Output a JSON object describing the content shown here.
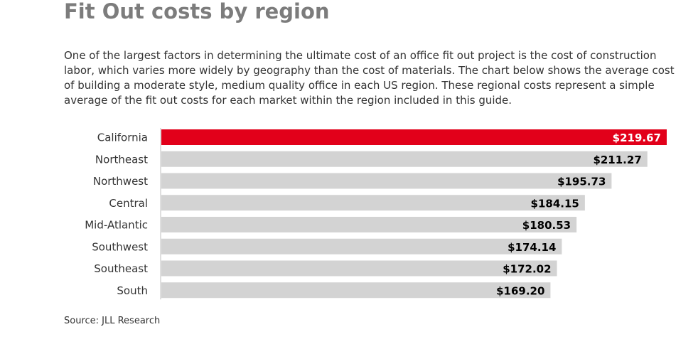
{
  "title": "Fit Out costs by region",
  "description": "One of the largest factors in determining the ultimate cost of an office fit out project is the cost of construction labor, which varies more widely by geography than the cost of materials. The chart below shows the average cost of building a moderate style, medium quality office in each US region. These regional costs represent a simple average of the fit out costs for each market within the region included in this guide.",
  "source": "Source: JLL Research",
  "colors": {
    "highlight": "#e2001a",
    "bar": "#d3d3d3",
    "value_on_highlight": "#ffffff",
    "value": "#000000",
    "category": "#333333",
    "title": "#7c7c7c"
  },
  "chart_data": {
    "type": "bar",
    "orientation": "horizontal",
    "categories": [
      "California",
      "Northeast",
      "Northwest",
      "Central",
      "Mid-Atlantic",
      "Southwest",
      "Southeast",
      "South"
    ],
    "values": [
      219.67,
      211.27,
      195.73,
      184.15,
      180.53,
      174.14,
      172.02,
      169.2
    ],
    "value_labels": [
      "$219.67",
      "$211.27",
      "$195.73",
      "$184.15",
      "$180.53",
      "$174.14",
      "$172.02",
      "$169.20"
    ],
    "highlight_category": "California",
    "xlim": [
      0,
      219.67
    ],
    "grid": false,
    "legend": "none"
  }
}
